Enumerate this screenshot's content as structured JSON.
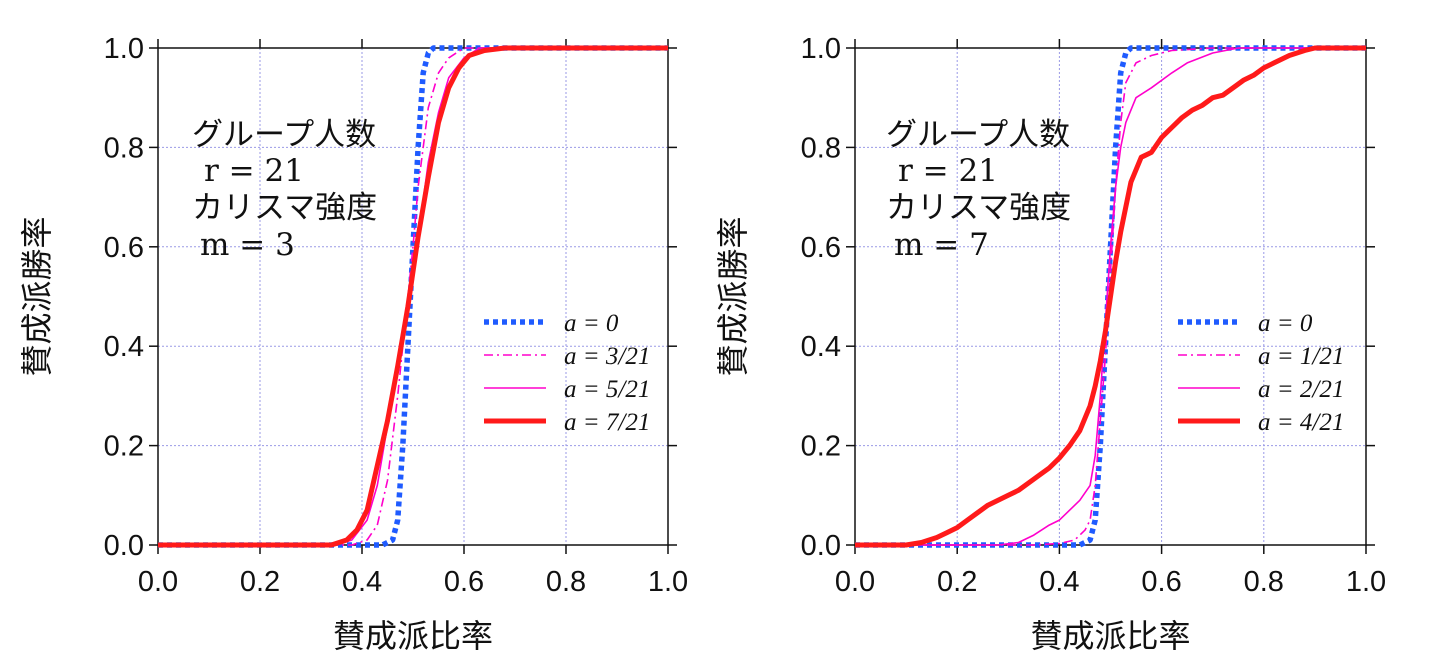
{
  "chart_data": [
    {
      "type": "line",
      "xlabel": "賛成派比率",
      "ylabel": "賛成派勝率",
      "xlim": [
        0,
        1
      ],
      "ylim": [
        0,
        1
      ],
      "x_ticks": [
        "0.0",
        "0.2",
        "0.4",
        "0.6",
        "0.8",
        "1.0"
      ],
      "y_ticks": [
        "0.0",
        "0.2",
        "0.4",
        "0.6",
        "0.8",
        "1.0"
      ],
      "grid": true,
      "legend_position": "bottom-right",
      "annotation": [
        "グループ人数",
        "r = 21",
        "カリスマ強度",
        "m = 3"
      ],
      "series": [
        {
          "name": "a = 0",
          "color": "#1f5bff",
          "style": "dotted-thick",
          "x": [
            0,
            0.44,
            0.46,
            0.47,
            0.48,
            0.49,
            0.5,
            0.51,
            0.52,
            0.53,
            0.54,
            0.56,
            1
          ],
          "y": [
            0,
            0,
            0.01,
            0.05,
            0.2,
            0.4,
            0.6,
            0.8,
            0.95,
            0.99,
            1,
            1,
            1
          ]
        },
        {
          "name": "a = 3/21",
          "color": "#ff00cc",
          "style": "dash-dot",
          "x": [
            0,
            0.38,
            0.41,
            0.43,
            0.45,
            0.47,
            0.49,
            0.5,
            0.51,
            0.53,
            0.55,
            0.57,
            0.6,
            1
          ],
          "y": [
            0,
            0,
            0.01,
            0.04,
            0.13,
            0.3,
            0.5,
            0.6,
            0.72,
            0.88,
            0.95,
            0.98,
            1,
            1
          ]
        },
        {
          "name": "a = 5/21",
          "color": "#ff00cc",
          "style": "thin",
          "x": [
            0,
            0.35,
            0.38,
            0.41,
            0.43,
            0.45,
            0.47,
            0.49,
            0.51,
            0.53,
            0.55,
            0.57,
            0.6,
            0.63,
            1
          ],
          "y": [
            0,
            0,
            0.01,
            0.05,
            0.12,
            0.24,
            0.37,
            0.48,
            0.62,
            0.77,
            0.87,
            0.94,
            0.98,
            1,
            1
          ]
        },
        {
          "name": "a = 7/21",
          "color": "#ff1a1a",
          "style": "thick",
          "x": [
            0,
            0.34,
            0.37,
            0.39,
            0.41,
            0.43,
            0.45,
            0.47,
            0.49,
            0.51,
            0.53,
            0.55,
            0.57,
            0.59,
            0.61,
            0.64,
            0.68,
            1
          ],
          "y": [
            0,
            0,
            0.01,
            0.03,
            0.07,
            0.16,
            0.25,
            0.36,
            0.48,
            0.62,
            0.74,
            0.85,
            0.92,
            0.96,
            0.985,
            0.995,
            1,
            1
          ]
        }
      ]
    },
    {
      "type": "line",
      "xlabel": "賛成派比率",
      "ylabel": "賛成派勝率",
      "xlim": [
        0,
        1
      ],
      "ylim": [
        0,
        1
      ],
      "x_ticks": [
        "0.0",
        "0.2",
        "0.4",
        "0.6",
        "0.8",
        "1.0"
      ],
      "y_ticks": [
        "0.0",
        "0.2",
        "0.4",
        "0.6",
        "0.8",
        "1.0"
      ],
      "grid": true,
      "legend_position": "bottom-right",
      "annotation": [
        "グループ人数",
        "r = 21",
        "カリスマ強度",
        "m = 7"
      ],
      "series": [
        {
          "name": "a = 0",
          "color": "#1f5bff",
          "style": "dotted-thick",
          "x": [
            0,
            0.44,
            0.46,
            0.47,
            0.48,
            0.49,
            0.5,
            0.51,
            0.52,
            0.53,
            0.54,
            0.56,
            1
          ],
          "y": [
            0,
            0,
            0.01,
            0.05,
            0.2,
            0.4,
            0.6,
            0.8,
            0.95,
            0.99,
            1,
            1,
            1
          ]
        },
        {
          "name": "a = 1/21",
          "color": "#ff00cc",
          "style": "dash-dot",
          "x": [
            0,
            0.35,
            0.4,
            0.43,
            0.45,
            0.46,
            0.47,
            0.48,
            0.49,
            0.5,
            0.51,
            0.52,
            0.53,
            0.55,
            0.58,
            0.62,
            0.7,
            1
          ],
          "y": [
            0,
            0,
            0.003,
            0.01,
            0.03,
            0.05,
            0.12,
            0.25,
            0.38,
            0.55,
            0.72,
            0.85,
            0.93,
            0.97,
            0.985,
            0.995,
            1,
            1
          ]
        },
        {
          "name": "a = 2/21",
          "color": "#ff00cc",
          "style": "thin",
          "x": [
            0,
            0.28,
            0.32,
            0.35,
            0.38,
            0.4,
            0.42,
            0.44,
            0.46,
            0.47,
            0.48,
            0.49,
            0.5,
            0.51,
            0.52,
            0.53,
            0.55,
            0.58,
            0.62,
            0.65,
            0.7,
            0.75,
            1
          ],
          "y": [
            0,
            0,
            0.005,
            0.02,
            0.04,
            0.05,
            0.07,
            0.09,
            0.12,
            0.18,
            0.3,
            0.45,
            0.6,
            0.72,
            0.8,
            0.85,
            0.9,
            0.92,
            0.95,
            0.97,
            0.99,
            1,
            1
          ]
        },
        {
          "name": "a = 4/21",
          "color": "#ff1a1a",
          "style": "thick",
          "x": [
            0,
            0.1,
            0.13,
            0.16,
            0.18,
            0.2,
            0.22,
            0.24,
            0.26,
            0.28,
            0.3,
            0.32,
            0.34,
            0.36,
            0.38,
            0.4,
            0.42,
            0.44,
            0.46,
            0.47,
            0.48,
            0.49,
            0.5,
            0.51,
            0.52,
            0.53,
            0.54,
            0.56,
            0.58,
            0.6,
            0.62,
            0.64,
            0.66,
            0.68,
            0.7,
            0.72,
            0.74,
            0.76,
            0.78,
            0.8,
            0.82,
            0.85,
            0.88,
            0.9,
            1
          ],
          "y": [
            0,
            0,
            0.005,
            0.015,
            0.025,
            0.035,
            0.05,
            0.065,
            0.08,
            0.09,
            0.1,
            0.11,
            0.125,
            0.14,
            0.155,
            0.175,
            0.2,
            0.23,
            0.28,
            0.32,
            0.37,
            0.43,
            0.5,
            0.57,
            0.63,
            0.68,
            0.73,
            0.78,
            0.79,
            0.82,
            0.84,
            0.86,
            0.875,
            0.885,
            0.9,
            0.905,
            0.92,
            0.935,
            0.945,
            0.96,
            0.97,
            0.985,
            0.995,
            1,
            1
          ]
        }
      ]
    }
  ]
}
